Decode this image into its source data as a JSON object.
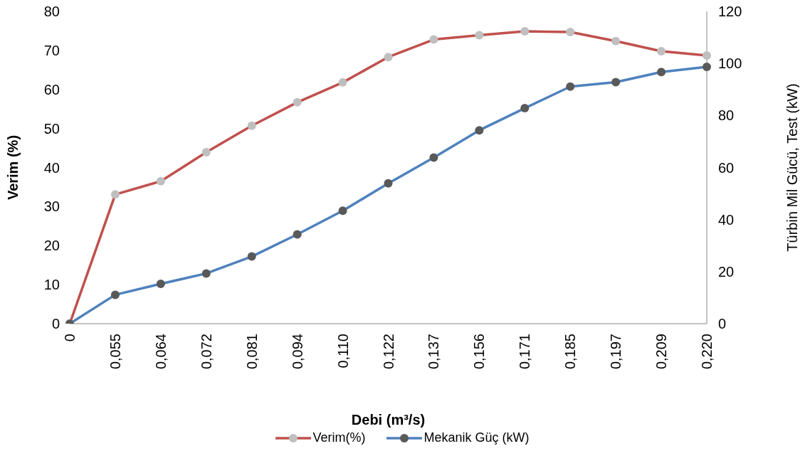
{
  "chart_data": {
    "type": "line",
    "xlabel": "Debi (m³/s)",
    "ylabel": "Verim (%)",
    "y2label": "Türbin  Mil Gücü, Test (kW)",
    "categories": [
      "0",
      "0,055",
      "0,064",
      "0,072",
      "0,081",
      "0,094",
      "0,110",
      "0,122",
      "0,137",
      "0,156",
      "0,171",
      "0,185",
      "0,197",
      "0,209",
      "0,220"
    ],
    "series": [
      {
        "name": "Verim(%)",
        "color": "#c0504d",
        "colors": [
          "#bfbfbf",
          "#bfbfbf",
          "#bfbfbf",
          "#bfbfbf",
          "#bfbfbf",
          "#bfbfbf",
          "#bfbfbf",
          "#bfbfbf",
          "#bfbfbf",
          "#bfbfbf",
          "#bfbfbf",
          "#bfbfbf",
          "#bfbfbf",
          "#bfbfbf",
          "#bfbfbf"
        ],
        "values": [
          0,
          33.1,
          36.5,
          43.9,
          50.7,
          56.7,
          61.8,
          68.3,
          72.8,
          73.9,
          74.9,
          74.7,
          72.4,
          69.8,
          68.7
        ]
      },
      {
        "name": "Mekanik Güç (kW)",
        "color": "#4f81bd",
        "axis": "y2",
        "colors": [
          "#595959",
          "#595959",
          "#595959",
          "#595959",
          "#595959",
          "#595959",
          "#595959",
          "#595959",
          "#595959",
          "#595959",
          "#595959",
          "#595959",
          "#595959",
          "#595959",
          "#595959"
        ],
        "values": [
          0,
          11.1,
          15.3,
          19.3,
          25.8,
          34.3,
          43.4,
          53.9,
          63.8,
          74.3,
          82.8,
          91.1,
          92.8,
          96.7,
          98.7
        ]
      }
    ],
    "ylim": [
      0,
      80
    ],
    "yticks": [
      0,
      10,
      20,
      30,
      40,
      50,
      60,
      70,
      80
    ],
    "y2lim": [
      0,
      120
    ],
    "y2ticks": [
      0,
      20,
      40,
      60,
      80,
      100,
      120
    ],
    "grid": false,
    "legend": "bottom",
    "marker": "circle",
    "line_style": "solid"
  }
}
